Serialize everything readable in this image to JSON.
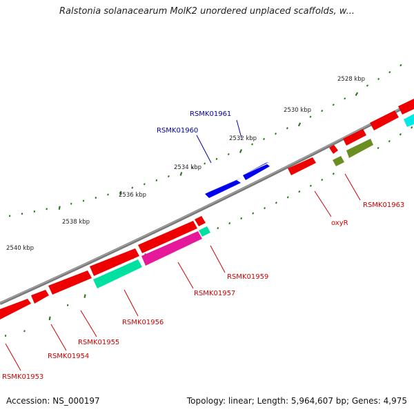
{
  "title": "Ralstonia solanacearum MolK2 unordered unplaced scaffolds, w...",
  "footer": {
    "accession": "Accession: NS_000197",
    "summary": "Topology: linear; Length: 5,964,607 bp; Genes: 4,975"
  },
  "colors": {
    "backbone": "#808080",
    "tick": "#2a7a1e",
    "label_red": "#cc0000",
    "label_blue": "#0000aa"
  },
  "scale_labels": [
    "2528 kbp",
    "2530 kbp",
    "2532 kbp",
    "2534 kbp",
    "2536 kbp",
    "2538 kbp",
    "2540 kbp"
  ],
  "gene_labels": [
    {
      "text": "RSMK01961",
      "color": "#0000aa"
    },
    {
      "text": "RSMK01960",
      "color": "#0000aa"
    },
    {
      "text": "RSMK01963",
      "color": "#cc0000"
    },
    {
      "text": "oxyR",
      "color": "#cc0000"
    },
    {
      "text": "RSMK01959",
      "color": "#cc0000"
    },
    {
      "text": "RSMK01957",
      "color": "#cc0000"
    },
    {
      "text": "RSMK01956",
      "color": "#cc0000"
    },
    {
      "text": "RSMK01955",
      "color": "#cc0000"
    },
    {
      "text": "RSMK01954",
      "color": "#cc0000"
    },
    {
      "text": "RSMK01953",
      "color": "#cc0000"
    }
  ]
}
